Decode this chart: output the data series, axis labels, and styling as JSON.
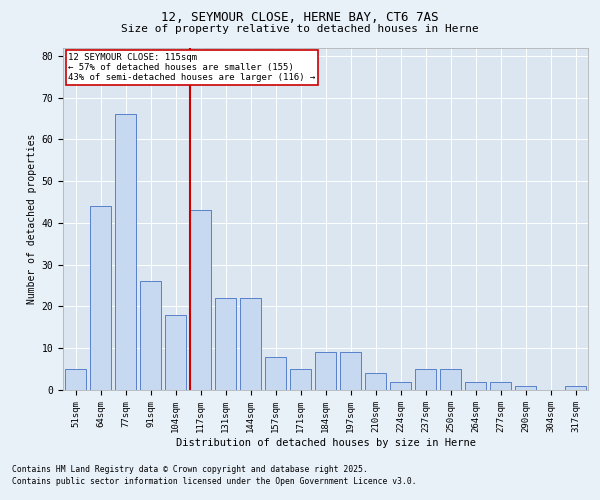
{
  "title1": "12, SEYMOUR CLOSE, HERNE BAY, CT6 7AS",
  "title2": "Size of property relative to detached houses in Herne",
  "xlabel": "Distribution of detached houses by size in Herne",
  "ylabel": "Number of detached properties",
  "categories": [
    "51sqm",
    "64sqm",
    "77sqm",
    "91sqm",
    "104sqm",
    "117sqm",
    "131sqm",
    "144sqm",
    "157sqm",
    "171sqm",
    "184sqm",
    "197sqm",
    "210sqm",
    "224sqm",
    "237sqm",
    "250sqm",
    "264sqm",
    "277sqm",
    "290sqm",
    "304sqm",
    "317sqm"
  ],
  "values": [
    5,
    44,
    66,
    26,
    18,
    43,
    22,
    22,
    8,
    5,
    9,
    9,
    4,
    2,
    5,
    5,
    2,
    2,
    1,
    0,
    1
  ],
  "bar_color": "#c6d9f0",
  "bar_edge_color": "#4472c4",
  "vline_x_index": 5,
  "vline_color": "#cc0000",
  "annotation_title": "12 SEYMOUR CLOSE: 115sqm",
  "annotation_line1": "← 57% of detached houses are smaller (155)",
  "annotation_line2": "43% of semi-detached houses are larger (116) →",
  "annotation_box_edge": "#cc0000",
  "annotation_box_bg": "#ffffff",
  "ylim": [
    0,
    82
  ],
  "yticks": [
    0,
    10,
    20,
    30,
    40,
    50,
    60,
    70,
    80
  ],
  "footnote1": "Contains HM Land Registry data © Crown copyright and database right 2025.",
  "footnote2": "Contains public sector information licensed under the Open Government Licence v3.0.",
  "bg_color": "#e8f0f8",
  "plot_bg_color": "#dce6f1"
}
